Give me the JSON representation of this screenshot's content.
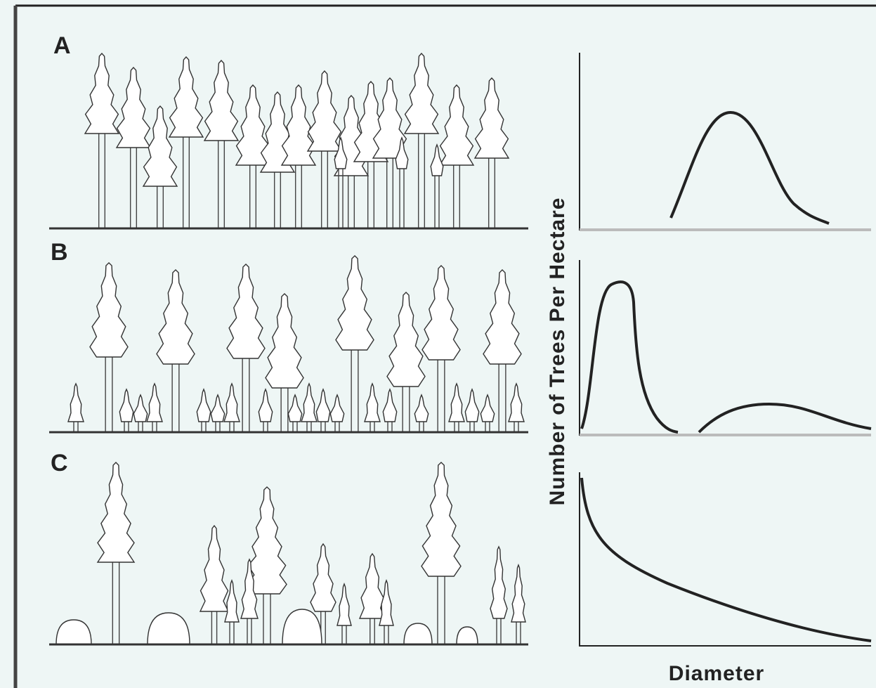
{
  "panels": [
    {
      "label": "A"
    },
    {
      "label": "B"
    },
    {
      "label": "C"
    }
  ],
  "y_axis_label": "Number of Trees Per Hectare",
  "x_axis_label": "Diameter"
}
